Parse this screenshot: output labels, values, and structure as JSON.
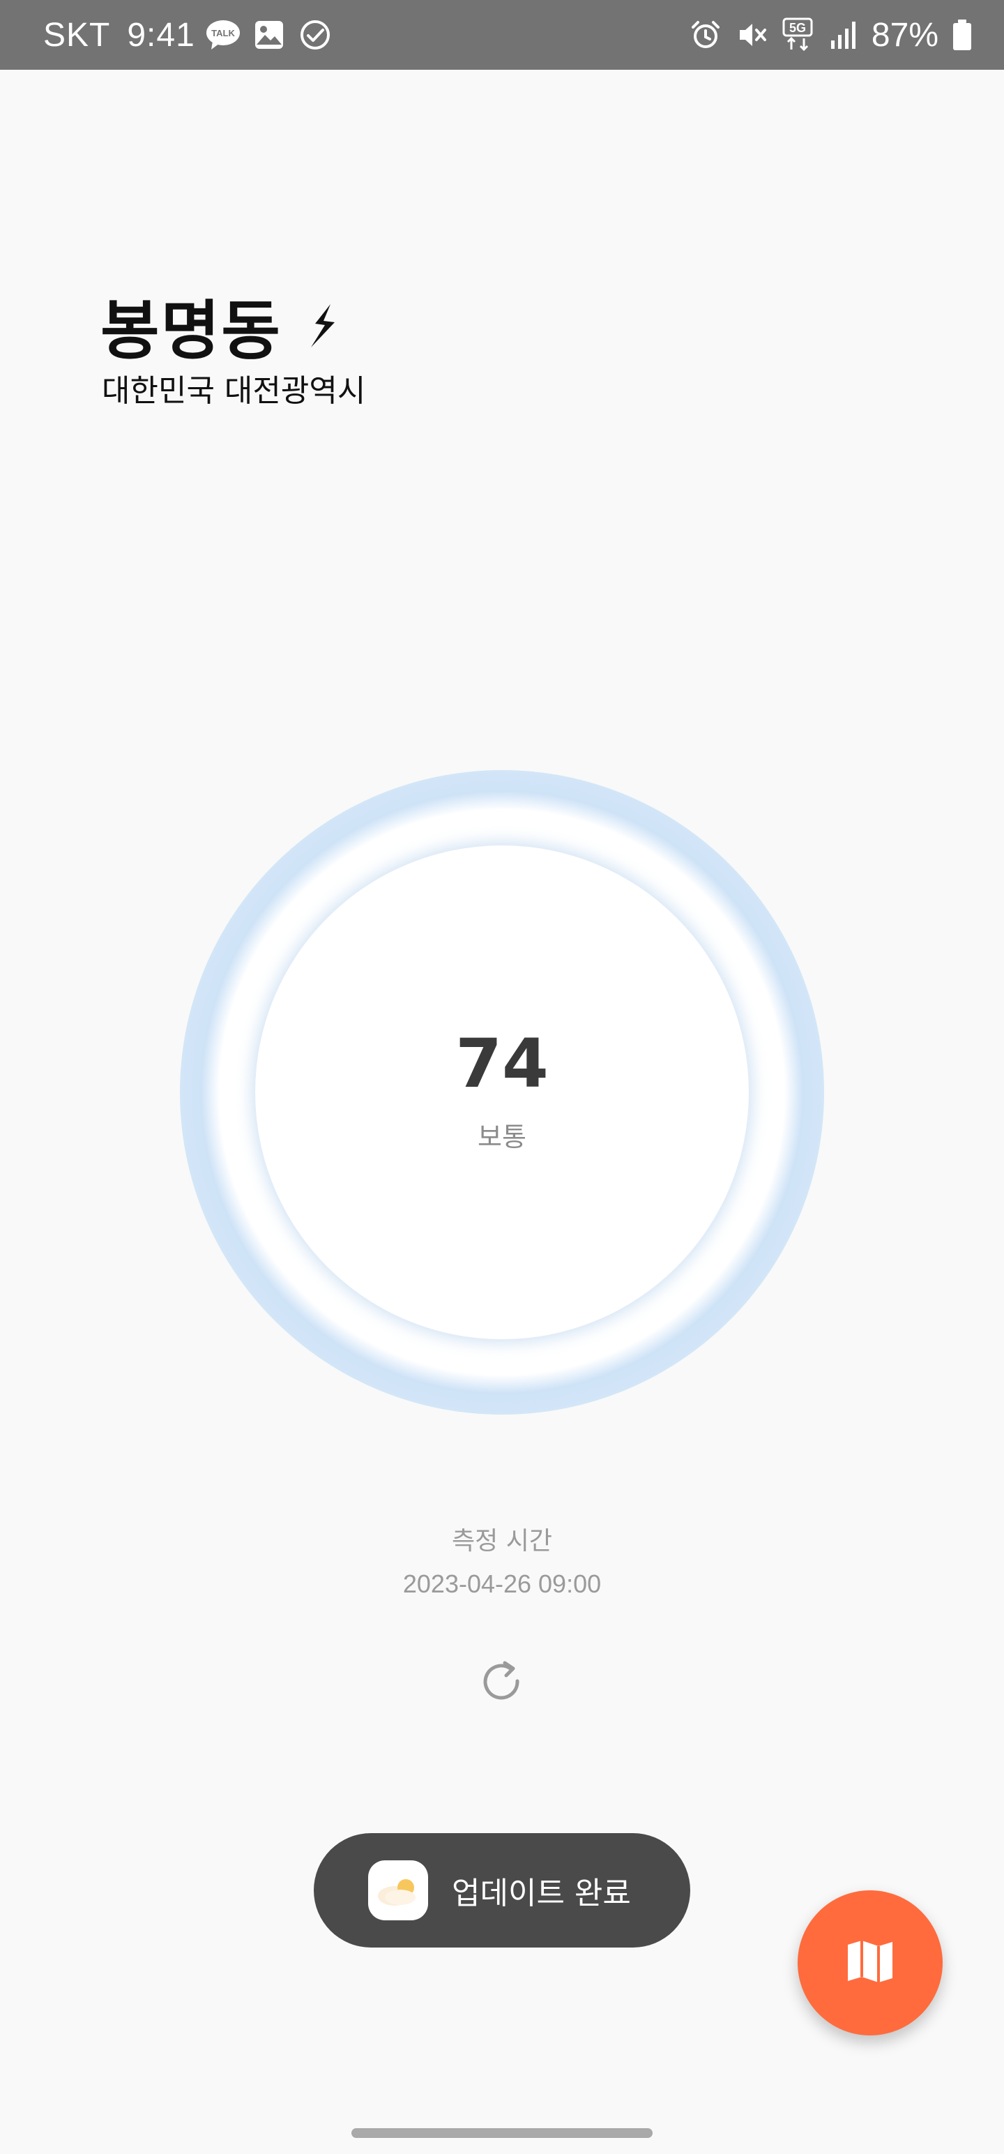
{
  "status_bar": {
    "carrier": "SKT",
    "time": "9:41",
    "left_icons": [
      "kakaotalk-icon",
      "gallery-icon",
      "check-circle-icon"
    ],
    "right_icons": [
      "alarm-icon",
      "mute-icon",
      "5g-icon",
      "signal-icon"
    ],
    "battery_percent": "87%"
  },
  "location": {
    "name": "봉명동",
    "region": "대한민국 대전광역시",
    "icon": "lightning-bolt-icon"
  },
  "gauge": {
    "value": "74",
    "status": "보통",
    "ring_color": "#d9eaf9"
  },
  "measurement": {
    "label": "측정 시간",
    "time": "2023-04-26 09:00"
  },
  "refresh": {
    "icon": "refresh-icon"
  },
  "toast": {
    "text": "업데이트 완료",
    "icon": "app-icon"
  },
  "fab": {
    "icon": "map-icon",
    "color": "#ff6b3d"
  }
}
